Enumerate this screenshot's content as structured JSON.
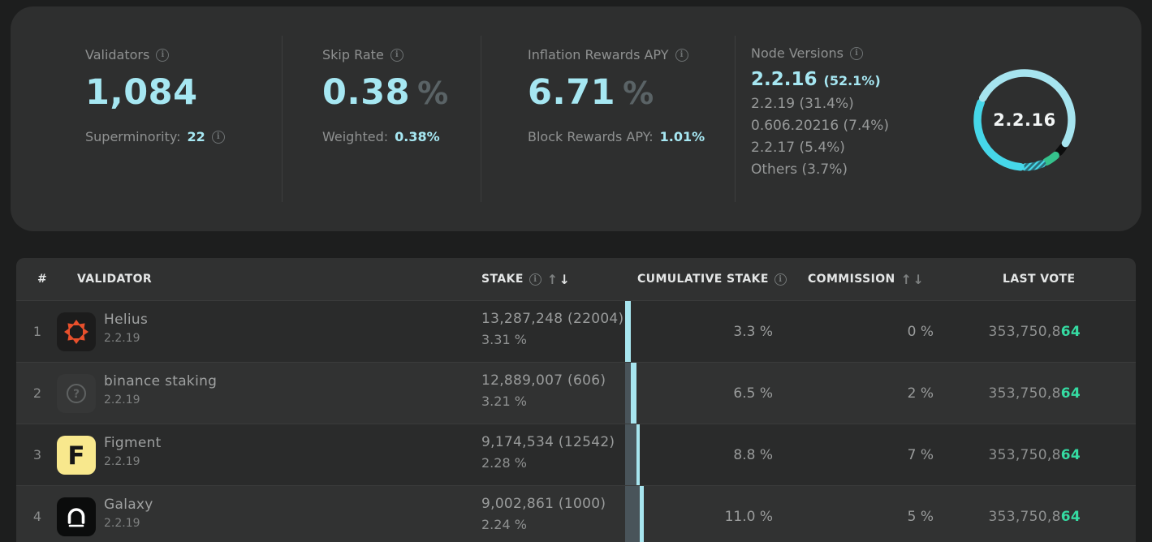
{
  "stats": {
    "validators": {
      "label": "Validators",
      "value": "1,084",
      "sub_label": "Superminority:",
      "sub_value": "22"
    },
    "skip_rate": {
      "label": "Skip Rate",
      "value": "0.38",
      "unit": "%",
      "sub_label": "Weighted:",
      "sub_value": "0.38%"
    },
    "inflation": {
      "label": "Inflation Rewards APY",
      "value": "6.71",
      "unit": "%",
      "sub_label": "Block Rewards APY:",
      "sub_value": "1.01%"
    },
    "node_versions": {
      "label": "Node Versions",
      "top_version": "2.2.16",
      "top_share": "(52.1%)",
      "others": [
        {
          "version": "2.2.19",
          "share": "(31.4%)"
        },
        {
          "version": "0.606.20216",
          "share": "(7.4%)"
        },
        {
          "version": "2.2.17",
          "share": "(5.4%)"
        },
        {
          "version": "Others",
          "share": "(3.7%)"
        }
      ]
    }
  },
  "chart_data": {
    "type": "pie",
    "title": "Node Versions",
    "center_label": "2.2.16",
    "legend_position": "left-list",
    "segments": [
      {
        "label": "2.2.16",
        "value": 52.1,
        "color": "#a6e4ef",
        "style": "solid"
      },
      {
        "label": "2.2.19",
        "value": 31.4,
        "color": "#46d7e9",
        "style": "solid"
      },
      {
        "label": "0.606.20216",
        "value": 7.4,
        "color": "#46d7e9",
        "style": "hatched"
      },
      {
        "label": "2.2.17",
        "value": 5.4,
        "color": "#35c28d",
        "style": "solid"
      },
      {
        "label": "Others",
        "value": 3.7,
        "color": "#0c0d0d",
        "style": "solid"
      }
    ],
    "draw_hint": {
      "start_angle_deg": 122.5,
      "direction": "clockwise-reversed-order",
      "gap_deg": 3
    }
  },
  "table": {
    "columns": {
      "rank": "#",
      "validator": "VALIDATOR",
      "stake": "STAKE",
      "cumulative": "CUMULATIVE STAKE",
      "commission": "COMMISSION",
      "last_vote": "LAST VOTE"
    },
    "sort": {
      "column": "stake",
      "direction": "desc"
    },
    "rows": [
      {
        "rank": "1",
        "name": "Helius",
        "version": "2.2.19",
        "icon": "helius-logo",
        "stake": "13,287,248",
        "stake_delta": "(22004)",
        "stake_pct": "3.31 %",
        "cumulative": "3.3 %",
        "cum_before_pct": 0,
        "share_pct": 3.31,
        "commission": "0 %",
        "last_vote_main": "353,750,8",
        "last_vote_accent": "64"
      },
      {
        "rank": "2",
        "name": "binance staking",
        "version": "2.2.19",
        "icon": "unknown-logo",
        "stake": "12,889,007",
        "stake_delta": "(606)",
        "stake_pct": "3.21 %",
        "cumulative": "6.5 %",
        "cum_before_pct": 3.3,
        "share_pct": 3.21,
        "commission": "2 %",
        "last_vote_main": "353,750,8",
        "last_vote_accent": "64"
      },
      {
        "rank": "3",
        "name": "Figment",
        "version": "2.2.19",
        "icon": "figment-logo",
        "stake": "9,174,534",
        "stake_delta": "(12542)",
        "stake_pct": "2.28 %",
        "cumulative": "8.8 %",
        "cum_before_pct": 6.5,
        "share_pct": 2.28,
        "commission": "7 %",
        "last_vote_main": "353,750,8",
        "last_vote_accent": "64"
      },
      {
        "rank": "4",
        "name": "Galaxy",
        "version": "2.2.19",
        "icon": "galaxy-logo",
        "stake": "9,002,861",
        "stake_delta": "(1000)",
        "stake_pct": "2.24 %",
        "cumulative": "11.0 %",
        "cum_before_pct": 8.8,
        "share_pct": 2.24,
        "commission": "5 %",
        "last_vote_main": "353,750,8",
        "last_vote_accent": "64"
      }
    ]
  }
}
